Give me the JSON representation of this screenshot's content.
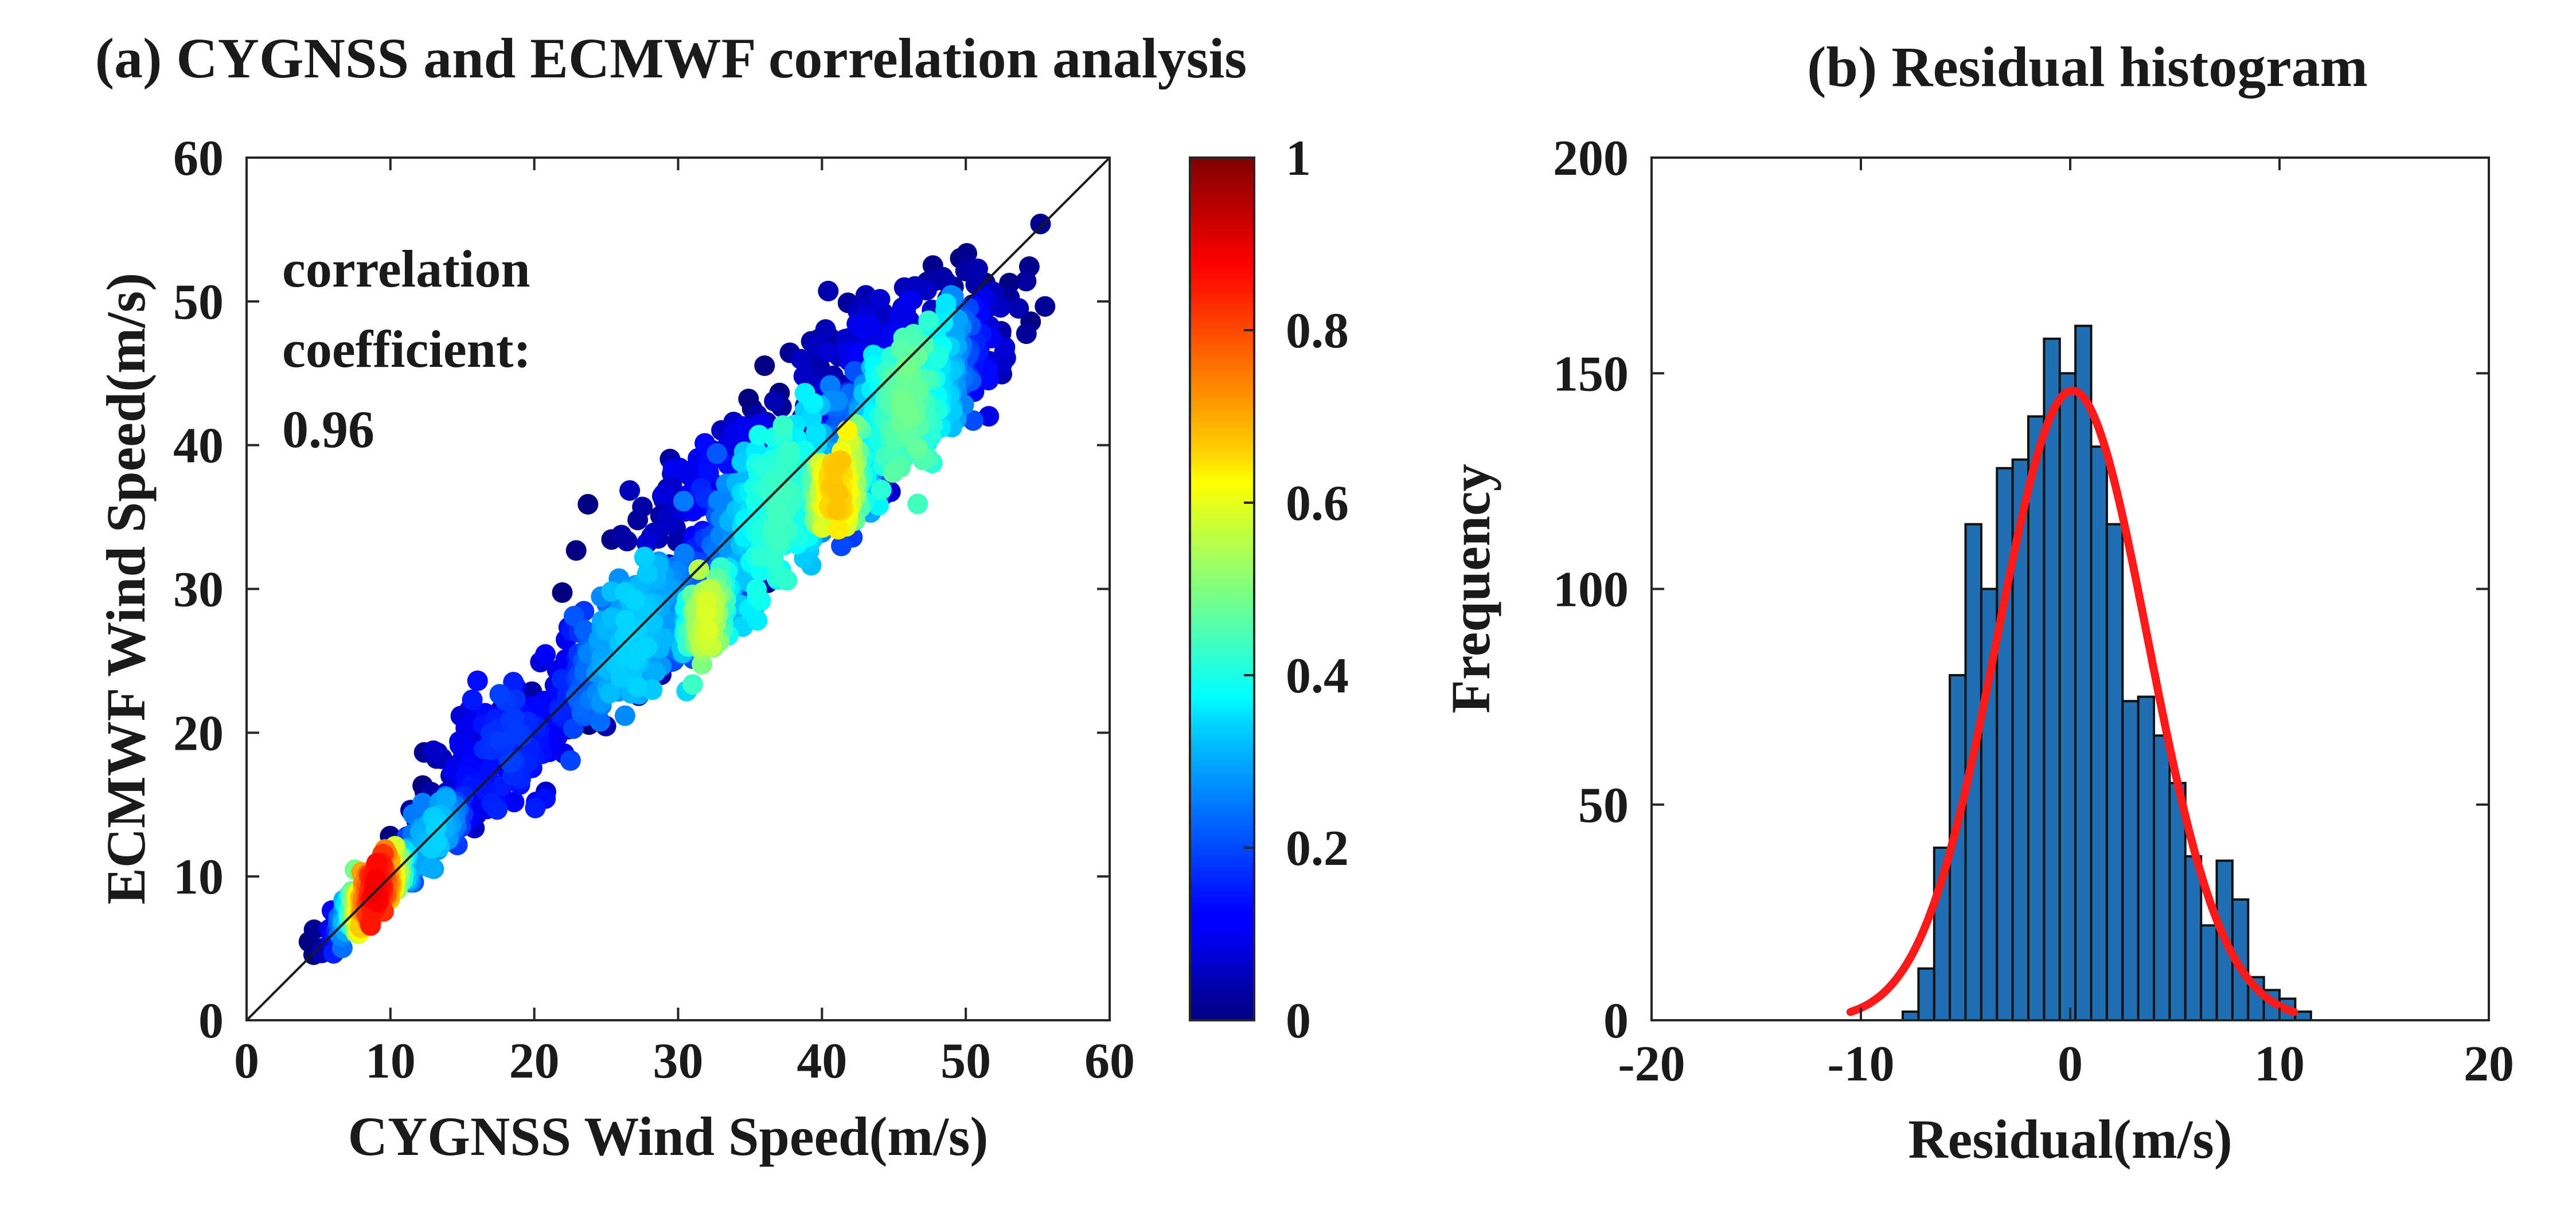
{
  "chart_data": [
    {
      "type": "scatter",
      "title": "(a) CYGNSS and ECMWF correlation analysis",
      "xlabel": "CYGNSS Wind Speed(m/s)",
      "ylabel": "ECMWF Wind Speed(m/s)",
      "xlim": [
        0,
        60
      ],
      "ylim": [
        0,
        60
      ],
      "xticks": [
        "0",
        "10",
        "20",
        "30",
        "40",
        "50",
        "60"
      ],
      "yticks": [
        "0",
        "10",
        "20",
        "30",
        "40",
        "50",
        "60"
      ],
      "annotation_lines": [
        "correlation",
        "coefficient:",
        "0.96"
      ],
      "reference_line": {
        "from": [
          0,
          0
        ],
        "to": [
          60,
          60
        ]
      },
      "colorbar": {
        "range": [
          0,
          1
        ],
        "ticks": [
          "0",
          "0.2",
          "0.4",
          "0.6",
          "0.8",
          "1"
        ],
        "colormap": "jet"
      },
      "point_clusters": [
        {
          "cx": 9,
          "cy": 9,
          "sx": 1.5,
          "rho": 0.9,
          "spread": 0.8,
          "n": 380,
          "density": 0.85
        },
        {
          "cx": 13,
          "cy": 13,
          "sx": 1.8,
          "rho": 0.8,
          "spread": 0.9,
          "n": 140,
          "density": 0.3
        },
        {
          "cx": 18,
          "cy": 19,
          "sx": 3.0,
          "rho": 0.6,
          "spread": 2.0,
          "n": 190,
          "density": 0.15
        },
        {
          "cx": 27,
          "cy": 27,
          "sx": 4.0,
          "rho": 0.8,
          "spread": 2.0,
          "n": 430,
          "density": 0.3
        },
        {
          "cx": 32,
          "cy": 28,
          "sx": 1.6,
          "rho": 0.6,
          "spread": 1.4,
          "n": 160,
          "density": 0.55
        },
        {
          "cx": 37,
          "cy": 36,
          "sx": 3.8,
          "rho": 0.8,
          "spread": 2.5,
          "n": 520,
          "density": 0.4
        },
        {
          "cx": 41,
          "cy": 37,
          "sx": 1.8,
          "rho": 0.5,
          "spread": 1.2,
          "n": 240,
          "density": 0.65
        },
        {
          "cx": 46,
          "cy": 43,
          "sx": 3.2,
          "rho": 0.7,
          "spread": 2.2,
          "n": 430,
          "density": 0.45
        },
        {
          "cx": 44,
          "cy": 48,
          "sx": 4.0,
          "rho": 0.5,
          "spread": 1.5,
          "n": 110,
          "density": 0.08
        },
        {
          "cx": 33,
          "cy": 38,
          "sx": 4.0,
          "rho": 0.6,
          "spread": 2.0,
          "n": 120,
          "density": 0.1
        }
      ]
    },
    {
      "type": "bar",
      "title": "(b) Residual histogram",
      "xlabel": "Residual(m/s)",
      "ylabel": "Frequency",
      "xlim": [
        -20,
        20
      ],
      "ylim": [
        0,
        200
      ],
      "xticks": [
        "-20",
        "-10",
        "0",
        "10",
        "20"
      ],
      "yticks": [
        "0",
        "50",
        "100",
        "150",
        "200"
      ],
      "bin_width": 0.75,
      "bin_edges_start": -8,
      "counts": [
        2,
        12,
        40,
        80,
        115,
        100,
        128,
        130,
        140,
        158,
        150,
        161,
        133,
        115,
        74,
        75,
        66,
        55,
        38,
        22,
        37,
        28,
        10,
        7,
        5,
        2
      ],
      "fit_curve": {
        "type": "normal",
        "mean": 0.1,
        "sigma": 3.6,
        "peak": 146,
        "x_from": -10.5,
        "x_to": 10.7
      },
      "bar_color": "#1f6fb2",
      "fit_color": "#ff1a1a"
    }
  ]
}
